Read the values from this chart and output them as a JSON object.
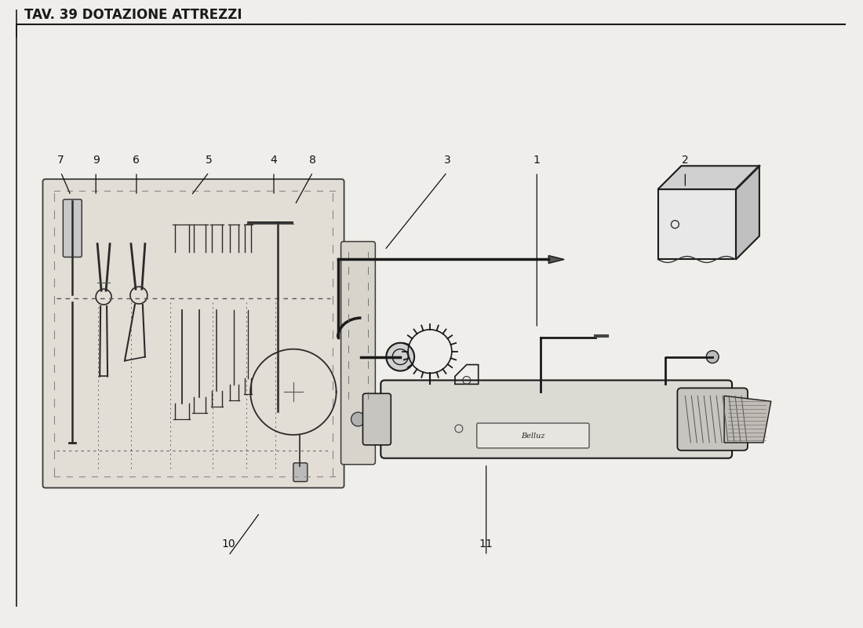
{
  "title": "TAV. 39 DOTAZIONE ATTREZZI",
  "bg_color": "#f0eeea",
  "line_color": "#1a1a1a",
  "title_fontsize": 12,
  "label_fontsize": 10
}
